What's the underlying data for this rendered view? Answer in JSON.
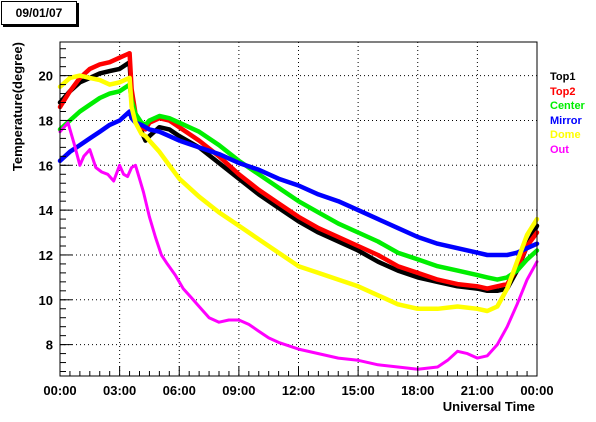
{
  "header": {
    "date_label": "09/01/07"
  },
  "chart_data": {
    "type": "line",
    "title": "",
    "xlabel": "Universal Time",
    "ylabel": "Temperature(degree)",
    "xlim": [
      0,
      24
    ],
    "ylim": [
      6.6,
      21.5
    ],
    "x_ticks": [
      "00:00",
      "03:00",
      "06:00",
      "09:00",
      "12:00",
      "15:00",
      "18:00",
      "21:00",
      "00:00"
    ],
    "y_ticks": [
      8,
      10,
      12,
      14,
      16,
      18,
      20
    ],
    "grid": true,
    "legend_position": "right",
    "series": [
      {
        "name": "Top1",
        "color": "#000000",
        "x": [
          0,
          0.5,
          1,
          1.5,
          2,
          2.5,
          3,
          3.5,
          3.6,
          3.8,
          4.1,
          4.3,
          4.5,
          5,
          5.5,
          6,
          7,
          8,
          9,
          10,
          11,
          12,
          13,
          14,
          15,
          16,
          17,
          18,
          19,
          20,
          21,
          21.5,
          22,
          22.5,
          23,
          23.5,
          24
        ],
        "y": [
          18.8,
          19.3,
          19.7,
          19.9,
          20.1,
          20.2,
          20.3,
          20.6,
          19.0,
          18.1,
          17.5,
          17.1,
          17.3,
          17.7,
          17.6,
          17.3,
          16.8,
          16.1,
          15.4,
          14.7,
          14.1,
          13.5,
          13.0,
          12.6,
          12.2,
          11.7,
          11.3,
          11.0,
          10.8,
          10.6,
          10.5,
          10.4,
          10.4,
          10.5,
          11.3,
          12.4,
          13.3
        ]
      },
      {
        "name": "Top2",
        "color": "#ff0000",
        "x": [
          0,
          0.5,
          1,
          1.5,
          2,
          2.5,
          3,
          3.5,
          3.6,
          3.8,
          4.1,
          4.3,
          4.5,
          5,
          5.5,
          6,
          7,
          8,
          9,
          10,
          11,
          12,
          13,
          14,
          15,
          16,
          17,
          18,
          19,
          20,
          21,
          21.5,
          22,
          22.5,
          23,
          23.5,
          24
        ],
        "y": [
          18.6,
          19.3,
          19.9,
          20.3,
          20.5,
          20.6,
          20.8,
          21.0,
          19.4,
          18.3,
          17.7,
          17.6,
          17.9,
          18.1,
          18.0,
          17.7,
          17.1,
          16.4,
          15.6,
          14.9,
          14.3,
          13.7,
          13.2,
          12.8,
          12.4,
          12.0,
          11.5,
          11.2,
          10.9,
          10.7,
          10.6,
          10.5,
          10.6,
          10.7,
          11.4,
          12.4,
          13.0
        ]
      },
      {
        "name": "Center",
        "color": "#00ee00",
        "x": [
          0,
          0.5,
          1,
          1.5,
          2,
          2.5,
          3,
          3.5,
          3.6,
          3.8,
          4.1,
          4.3,
          4.5,
          5,
          5.5,
          6,
          7,
          8,
          9,
          10,
          11,
          12,
          13,
          14,
          15,
          16,
          17,
          18,
          19,
          20,
          21,
          21.5,
          22,
          22.5,
          23,
          23.5,
          24
        ],
        "y": [
          17.6,
          18.0,
          18.4,
          18.7,
          19.0,
          19.2,
          19.3,
          19.6,
          18.9,
          18.3,
          17.9,
          17.8,
          18.0,
          18.2,
          18.1,
          17.9,
          17.5,
          16.9,
          16.2,
          15.6,
          15.0,
          14.4,
          13.9,
          13.4,
          13.0,
          12.6,
          12.1,
          11.8,
          11.5,
          11.3,
          11.1,
          11.0,
          10.9,
          11.0,
          11.3,
          11.8,
          12.2
        ]
      },
      {
        "name": "Mirror",
        "color": "#0000ff",
        "x": [
          0,
          0.5,
          1,
          1.5,
          2,
          2.5,
          3,
          3.5,
          3.6,
          3.8,
          4.1,
          4.3,
          4.5,
          5,
          5.5,
          6,
          7,
          8,
          9,
          10,
          11,
          12,
          13,
          14,
          15,
          16,
          17,
          18,
          19,
          20,
          21,
          21.5,
          22,
          22.5,
          23,
          23.5,
          24
        ],
        "y": [
          16.2,
          16.6,
          16.9,
          17.2,
          17.5,
          17.8,
          18.0,
          18.4,
          18.1,
          17.9,
          17.8,
          17.7,
          17.6,
          17.5,
          17.3,
          17.1,
          16.8,
          16.5,
          16.1,
          15.8,
          15.4,
          15.1,
          14.7,
          14.4,
          14.0,
          13.6,
          13.2,
          12.8,
          12.5,
          12.3,
          12.1,
          12.0,
          12.0,
          12.0,
          12.1,
          12.3,
          12.5
        ]
      },
      {
        "name": "Dome",
        "color": "#ffff00",
        "x": [
          0,
          0.5,
          1,
          1.5,
          2,
          2.5,
          3,
          3.5,
          3.6,
          3.8,
          4.1,
          4.3,
          4.5,
          5,
          5.5,
          6,
          7,
          8,
          9,
          10,
          11,
          12,
          13,
          14,
          15,
          16,
          17,
          18,
          19,
          20,
          21,
          21.5,
          22,
          22.5,
          23,
          23.5,
          24
        ],
        "y": [
          19.5,
          19.9,
          20.0,
          19.9,
          19.8,
          19.6,
          19.7,
          19.9,
          18.6,
          17.9,
          17.4,
          17.3,
          17.1,
          16.6,
          16.0,
          15.4,
          14.6,
          13.9,
          13.3,
          12.7,
          12.1,
          11.5,
          11.2,
          10.9,
          10.6,
          10.2,
          9.8,
          9.6,
          9.6,
          9.7,
          9.6,
          9.5,
          9.7,
          10.5,
          11.7,
          12.9,
          13.6
        ]
      },
      {
        "name": "Out",
        "color": "#ff00ff",
        "x": [
          0,
          0.4,
          0.7,
          1.0,
          1.2,
          1.5,
          1.8,
          2.1,
          2.4,
          2.7,
          3.0,
          3.2,
          3.4,
          3.6,
          3.8,
          4.0,
          4.2,
          4.5,
          4.8,
          5.1,
          5.4,
          5.8,
          6.2,
          6.6,
          7.0,
          7.5,
          8.0,
          8.5,
          9.0,
          9.5,
          10.0,
          10.5,
          11.0,
          12.0,
          13.0,
          14.0,
          15.0,
          16.0,
          17.0,
          18.0,
          19.0,
          19.5,
          20.0,
          20.5,
          21.0,
          21.5,
          22.0,
          22.5,
          23.0,
          23.5,
          24.0
        ],
        "y": [
          17.5,
          17.9,
          17.0,
          16.0,
          16.4,
          16.7,
          15.9,
          15.7,
          15.6,
          15.3,
          16.0,
          15.6,
          15.5,
          15.9,
          16.0,
          15.4,
          14.8,
          13.7,
          12.8,
          12.0,
          11.6,
          11.1,
          10.5,
          10.1,
          9.7,
          9.2,
          9.0,
          9.1,
          9.1,
          8.9,
          8.6,
          8.3,
          8.1,
          7.8,
          7.6,
          7.4,
          7.3,
          7.1,
          7.0,
          6.9,
          7.0,
          7.3,
          7.7,
          7.6,
          7.4,
          7.5,
          8.0,
          8.8,
          9.8,
          10.9,
          11.7
        ]
      }
    ]
  }
}
